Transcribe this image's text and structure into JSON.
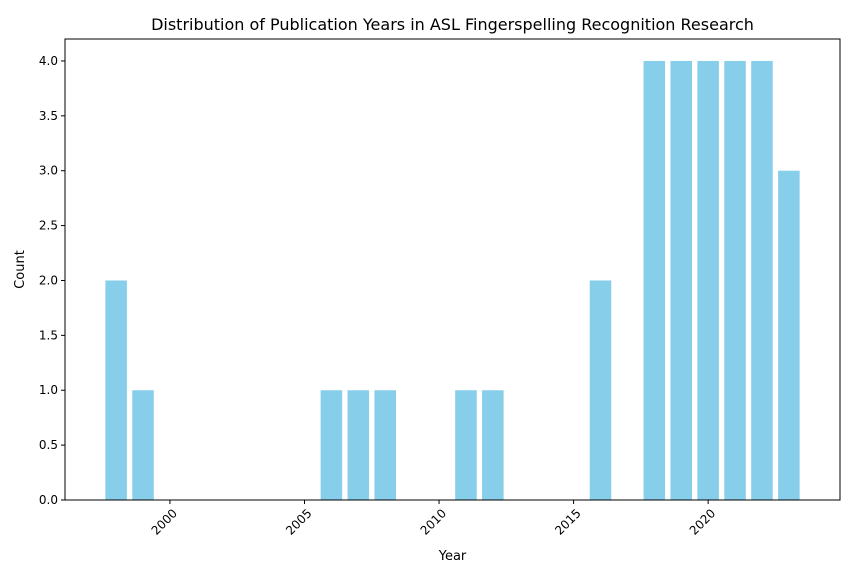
{
  "chart_data": {
    "type": "bar",
    "title": "Distribution of Publication Years in ASL Fingerspelling Recognition Research",
    "xlabel": "Year",
    "ylabel": "Count",
    "x": [
      1998,
      1999,
      2006,
      2007,
      2008,
      2011,
      2012,
      2016,
      2018,
      2019,
      2020,
      2021,
      2022,
      2023
    ],
    "values": [
      2,
      1,
      1,
      1,
      1,
      1,
      1,
      2,
      4,
      4,
      4,
      4,
      4,
      3
    ],
    "xlim": [
      1996.1,
      2024.9
    ],
    "ylim": [
      0,
      4.2
    ],
    "xticks": [
      2000,
      2005,
      2010,
      2015,
      2020
    ],
    "xtick_labels": [
      "2000",
      "2005",
      "2010",
      "2015",
      "2020"
    ],
    "yticks": [
      0,
      0.5,
      1,
      1.5,
      2,
      2.5,
      3,
      3.5,
      4
    ],
    "ytick_labels": [
      "0.0",
      "0.5",
      "1.0",
      "1.5",
      "2.0",
      "2.5",
      "3.0",
      "3.5",
      "4.0"
    ],
    "bar_color": "#87CEEB",
    "grid": false
  }
}
